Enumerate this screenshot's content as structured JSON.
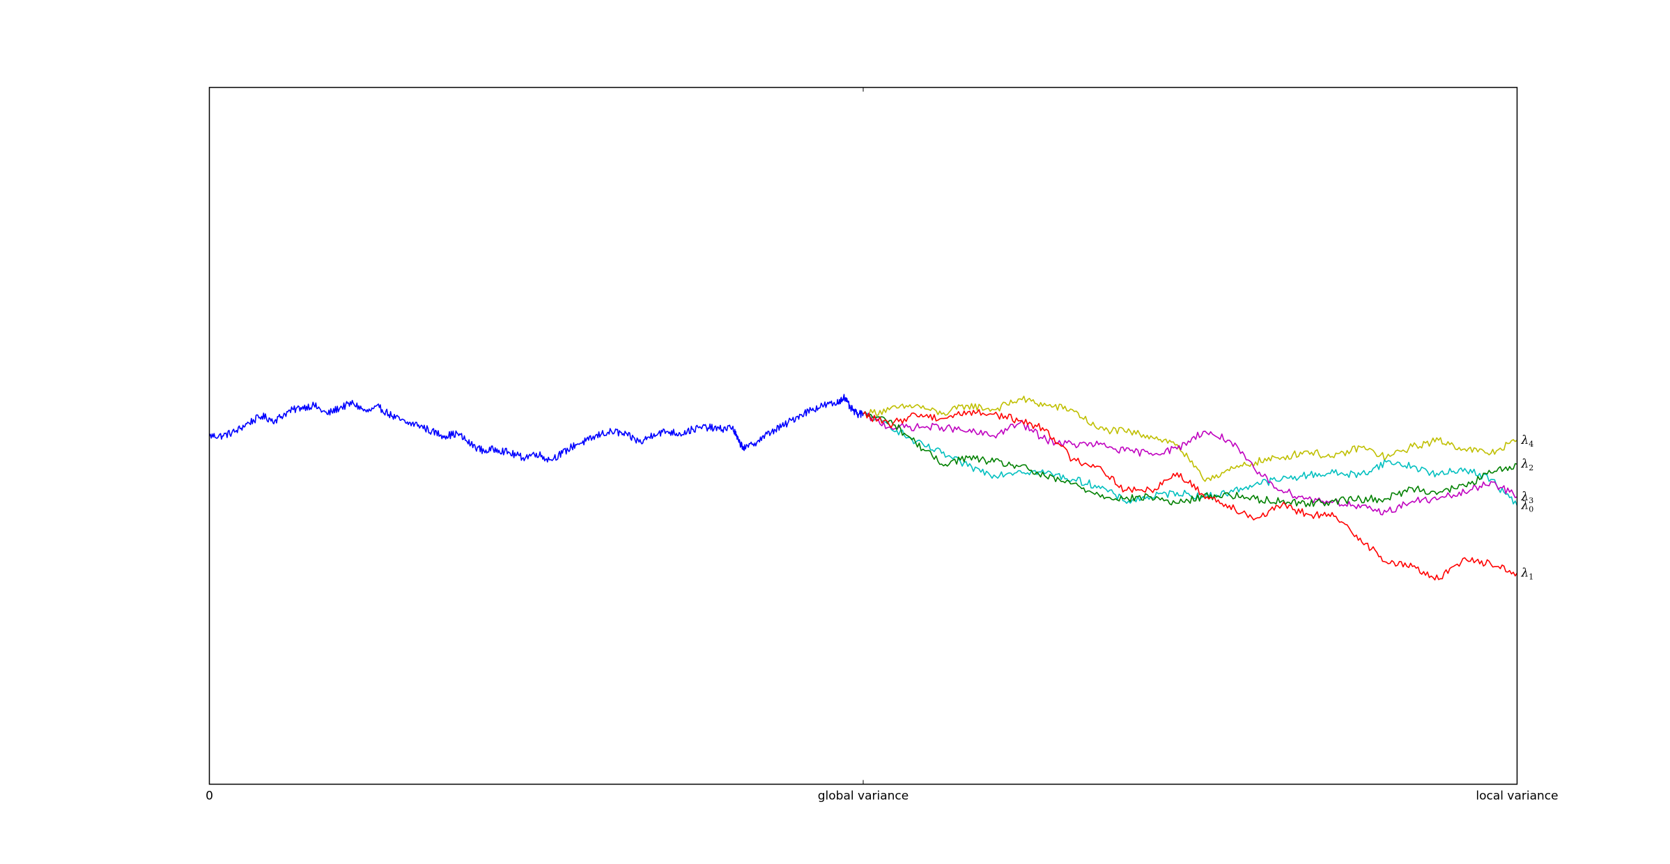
{
  "chart_data": {
    "type": "line",
    "title": "",
    "xlabel": "",
    "ylabel": "",
    "xlim": [
      0,
      2
    ],
    "ylim": [
      -1.6,
      1.6
    ],
    "grid": false,
    "x_ticks": [
      {
        "value": 0,
        "label": "0"
      },
      {
        "value": 1,
        "label": "global variance"
      },
      {
        "value": 2,
        "label": "local variance"
      }
    ],
    "series": [
      {
        "color": "#0000ff",
        "points": [
          [
            0,
            0.0
          ],
          [
            0.02,
            0.0
          ],
          [
            0.04,
            0.02
          ],
          [
            0.06,
            0.06
          ],
          [
            0.08,
            0.09
          ],
          [
            0.1,
            0.07
          ],
          [
            0.12,
            0.11
          ],
          [
            0.14,
            0.13
          ],
          [
            0.16,
            0.14
          ],
          [
            0.18,
            0.1
          ],
          [
            0.2,
            0.13
          ],
          [
            0.22,
            0.15
          ],
          [
            0.24,
            0.11
          ],
          [
            0.26,
            0.13
          ],
          [
            0.28,
            0.09
          ],
          [
            0.3,
            0.06
          ],
          [
            0.32,
            0.05
          ],
          [
            0.34,
            0.02
          ],
          [
            0.36,
            0.0
          ],
          [
            0.38,
            0.01
          ],
          [
            0.4,
            -0.04
          ],
          [
            0.42,
            -0.07
          ],
          [
            0.44,
            -0.06
          ],
          [
            0.46,
            -0.08
          ],
          [
            0.48,
            -0.1
          ],
          [
            0.5,
            -0.08
          ],
          [
            0.52,
            -0.11
          ],
          [
            0.54,
            -0.08
          ],
          [
            0.56,
            -0.04
          ],
          [
            0.58,
            -0.02
          ],
          [
            0.6,
            0.01
          ],
          [
            0.62,
            0.02
          ],
          [
            0.64,
            0.0
          ],
          [
            0.66,
            -0.03
          ],
          [
            0.68,
            0.01
          ],
          [
            0.7,
            0.02
          ],
          [
            0.72,
            0.01
          ],
          [
            0.74,
            0.03
          ],
          [
            0.76,
            0.04
          ],
          [
            0.78,
            0.03
          ],
          [
            0.8,
            0.04
          ],
          [
            0.81,
            -0.03
          ],
          [
            0.82,
            -0.06
          ],
          [
            0.84,
            -0.02
          ],
          [
            0.86,
            0.02
          ],
          [
            0.88,
            0.05
          ],
          [
            0.9,
            0.09
          ],
          [
            0.92,
            0.12
          ],
          [
            0.94,
            0.14
          ],
          [
            0.96,
            0.15
          ],
          [
            0.97,
            0.18
          ],
          [
            0.98,
            0.13
          ],
          [
            0.99,
            0.1
          ],
          [
            1.0,
            0.1
          ]
        ]
      },
      {
        "name": "λ4",
        "color": "#bfbf00",
        "points": [
          [
            1.0,
            0.1
          ],
          [
            1.04,
            0.12
          ],
          [
            1.08,
            0.14
          ],
          [
            1.12,
            0.1
          ],
          [
            1.16,
            0.14
          ],
          [
            1.2,
            0.12
          ],
          [
            1.24,
            0.17
          ],
          [
            1.28,
            0.14
          ],
          [
            1.32,
            0.12
          ],
          [
            1.36,
            0.03
          ],
          [
            1.4,
            0.02
          ],
          [
            1.44,
            0.0
          ],
          [
            1.48,
            -0.04
          ],
          [
            1.52,
            -0.2
          ],
          [
            1.56,
            -0.16
          ],
          [
            1.6,
            -0.12
          ],
          [
            1.64,
            -0.1
          ],
          [
            1.68,
            -0.07
          ],
          [
            1.72,
            -0.1
          ],
          [
            1.76,
            -0.05
          ],
          [
            1.8,
            -0.1
          ],
          [
            1.84,
            -0.05
          ],
          [
            1.88,
            -0.02
          ],
          [
            1.92,
            -0.06
          ],
          [
            1.96,
            -0.08
          ],
          [
            2.0,
            -0.02
          ]
        ]
      },
      {
        "name": "λ0",
        "color": "#00bfbf",
        "points": [
          [
            1.0,
            0.1
          ],
          [
            1.04,
            0.05
          ],
          [
            1.08,
            -0.03
          ],
          [
            1.12,
            -0.08
          ],
          [
            1.16,
            -0.14
          ],
          [
            1.2,
            -0.18
          ],
          [
            1.24,
            -0.16
          ],
          [
            1.28,
            -0.17
          ],
          [
            1.32,
            -0.2
          ],
          [
            1.36,
            -0.23
          ],
          [
            1.4,
            -0.3
          ],
          [
            1.44,
            -0.28
          ],
          [
            1.48,
            -0.26
          ],
          [
            1.52,
            -0.28
          ],
          [
            1.56,
            -0.26
          ],
          [
            1.6,
            -0.22
          ],
          [
            1.64,
            -0.2
          ],
          [
            1.68,
            -0.18
          ],
          [
            1.72,
            -0.17
          ],
          [
            1.76,
            -0.18
          ],
          [
            1.8,
            -0.12
          ],
          [
            1.84,
            -0.14
          ],
          [
            1.88,
            -0.18
          ],
          [
            1.92,
            -0.15
          ],
          [
            1.96,
            -0.2
          ],
          [
            2.0,
            -0.32
          ]
        ]
      },
      {
        "name": "λ3",
        "color": "#bf00bf",
        "points": [
          [
            1.0,
            0.1
          ],
          [
            1.04,
            0.04
          ],
          [
            1.08,
            0.04
          ],
          [
            1.12,
            0.04
          ],
          [
            1.16,
            0.02
          ],
          [
            1.2,
            0.0
          ],
          [
            1.24,
            0.06
          ],
          [
            1.28,
            -0.02
          ],
          [
            1.32,
            -0.04
          ],
          [
            1.36,
            -0.04
          ],
          [
            1.4,
            -0.07
          ],
          [
            1.44,
            -0.08
          ],
          [
            1.48,
            -0.06
          ],
          [
            1.52,
            0.02
          ],
          [
            1.56,
            -0.02
          ],
          [
            1.6,
            -0.16
          ],
          [
            1.64,
            -0.25
          ],
          [
            1.68,
            -0.29
          ],
          [
            1.72,
            -0.3
          ],
          [
            1.76,
            -0.33
          ],
          [
            1.8,
            -0.35
          ],
          [
            1.84,
            -0.3
          ],
          [
            1.88,
            -0.29
          ],
          [
            1.92,
            -0.26
          ],
          [
            1.96,
            -0.21
          ],
          [
            2.0,
            -0.28
          ]
        ]
      },
      {
        "name": "λ2",
        "color": "#008000",
        "points": [
          [
            1.0,
            0.1
          ],
          [
            1.04,
            0.07
          ],
          [
            1.08,
            -0.03
          ],
          [
            1.12,
            -0.13
          ],
          [
            1.16,
            -0.1
          ],
          [
            1.2,
            -0.12
          ],
          [
            1.24,
            -0.14
          ],
          [
            1.28,
            -0.19
          ],
          [
            1.32,
            -0.22
          ],
          [
            1.36,
            -0.27
          ],
          [
            1.4,
            -0.29
          ],
          [
            1.44,
            -0.28
          ],
          [
            1.48,
            -0.31
          ],
          [
            1.52,
            -0.28
          ],
          [
            1.56,
            -0.27
          ],
          [
            1.6,
            -0.29
          ],
          [
            1.64,
            -0.3
          ],
          [
            1.68,
            -0.31
          ],
          [
            1.72,
            -0.3
          ],
          [
            1.76,
            -0.29
          ],
          [
            1.8,
            -0.29
          ],
          [
            1.84,
            -0.24
          ],
          [
            1.88,
            -0.26
          ],
          [
            1.92,
            -0.23
          ],
          [
            1.96,
            -0.17
          ],
          [
            2.0,
            -0.13
          ]
        ]
      },
      {
        "name": "λ1",
        "color": "#ff0000",
        "points": [
          [
            1.0,
            0.1
          ],
          [
            1.04,
            0.05
          ],
          [
            1.08,
            0.1
          ],
          [
            1.12,
            0.08
          ],
          [
            1.16,
            0.11
          ],
          [
            1.2,
            0.1
          ],
          [
            1.24,
            0.07
          ],
          [
            1.28,
            0.03
          ],
          [
            1.32,
            -0.11
          ],
          [
            1.36,
            -0.14
          ],
          [
            1.4,
            -0.25
          ],
          [
            1.44,
            -0.25
          ],
          [
            1.48,
            -0.17
          ],
          [
            1.52,
            -0.27
          ],
          [
            1.56,
            -0.32
          ],
          [
            1.6,
            -0.38
          ],
          [
            1.64,
            -0.32
          ],
          [
            1.68,
            -0.36
          ],
          [
            1.72,
            -0.37
          ],
          [
            1.76,
            -0.47
          ],
          [
            1.8,
            -0.58
          ],
          [
            1.84,
            -0.6
          ],
          [
            1.88,
            -0.66
          ],
          [
            1.92,
            -0.56
          ],
          [
            1.96,
            -0.59
          ],
          [
            2.0,
            -0.63
          ]
        ]
      }
    ]
  }
}
